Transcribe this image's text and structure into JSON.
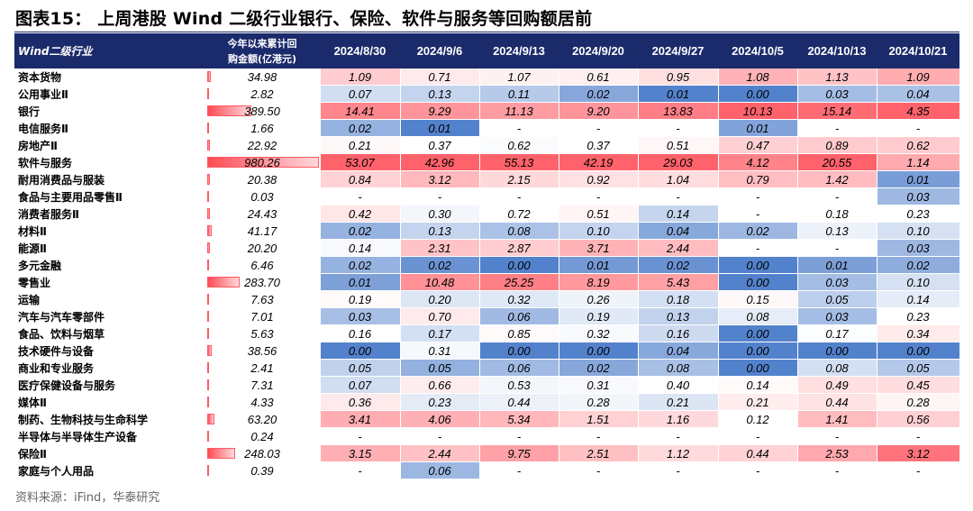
{
  "title": "图表15： 上周港股 Wind 二级行业银行、保险、软件与服务等回购额居前",
  "source": "资料来源：iFind，华泰研究",
  "columns": {
    "name": "Wind二级行业",
    "total_line1": "今年以来累计回",
    "total_line2": "购金额(亿港元)",
    "dates": [
      "2024/8/30",
      "2024/9/6",
      "2024/9/13",
      "2024/9/20",
      "2024/9/27",
      "2024/10/5",
      "2024/10/13",
      "2024/10/21"
    ]
  },
  "colors": {
    "header_bg": "#1b2a6b",
    "low": "#4a7bc9",
    "mid": "#ffffff",
    "high": "#ff5a63",
    "bar": "#ff4b55"
  },
  "rows": [
    {
      "name": "资本货物",
      "total": "34.98",
      "values": [
        "1.09",
        "0.71",
        "1.07",
        "0.61",
        "0.95",
        "1.08",
        "1.13",
        "1.09"
      ]
    },
    {
      "name": "公用事业Ⅱ",
      "total": "2.82",
      "values": [
        "0.07",
        "0.13",
        "0.11",
        "0.02",
        "0.01",
        "0.00",
        "0.03",
        "0.04"
      ]
    },
    {
      "name": "银行",
      "total": "389.50",
      "values": [
        "14.41",
        "9.29",
        "11.13",
        "9.20",
        "13.83",
        "10.13",
        "15.14",
        "4.35"
      ]
    },
    {
      "name": "电信服务Ⅱ",
      "total": "1.66",
      "values": [
        "0.02",
        "0.01",
        "-",
        "-",
        "-",
        "0.01",
        "-",
        "-"
      ]
    },
    {
      "name": "房地产Ⅱ",
      "total": "22.92",
      "values": [
        "0.21",
        "0.37",
        "0.62",
        "0.37",
        "0.51",
        "0.47",
        "0.89",
        "0.62"
      ]
    },
    {
      "name": "软件与服务",
      "total": "980.26",
      "values": [
        "53.07",
        "42.96",
        "55.13",
        "42.19",
        "29.03",
        "4.12",
        "20.55",
        "1.14"
      ]
    },
    {
      "name": "耐用消费品与服装",
      "total": "20.38",
      "values": [
        "0.84",
        "3.12",
        "2.15",
        "0.92",
        "1.04",
        "0.79",
        "1.42",
        "0.01"
      ]
    },
    {
      "name": "食品与主要用品零售Ⅱ",
      "total": "0.03",
      "values": [
        "-",
        "-",
        "-",
        "-",
        "-",
        "-",
        "-",
        "0.03"
      ]
    },
    {
      "name": "消费者服务Ⅱ",
      "total": "24.43",
      "values": [
        "0.42",
        "0.30",
        "0.72",
        "0.51",
        "0.14",
        "-",
        "0.18",
        "0.23"
      ]
    },
    {
      "name": "材料Ⅱ",
      "total": "41.17",
      "values": [
        "0.02",
        "0.13",
        "0.08",
        "0.10",
        "0.04",
        "0.02",
        "0.13",
        "0.10"
      ]
    },
    {
      "name": "能源Ⅱ",
      "total": "20.20",
      "values": [
        "0.14",
        "2.31",
        "2.87",
        "3.71",
        "2.44",
        "-",
        "-",
        "0.03"
      ]
    },
    {
      "name": "多元金融",
      "total": "6.46",
      "values": [
        "0.02",
        "0.02",
        "0.00",
        "0.01",
        "0.02",
        "0.00",
        "0.01",
        "0.02"
      ]
    },
    {
      "name": "零售业",
      "total": "283.70",
      "values": [
        "0.01",
        "10.48",
        "25.25",
        "8.19",
        "5.43",
        "0.00",
        "0.03",
        "0.10"
      ]
    },
    {
      "name": "运输",
      "total": "7.63",
      "values": [
        "0.19",
        "0.20",
        "0.32",
        "0.26",
        "0.18",
        "0.15",
        "0.05",
        "0.14"
      ]
    },
    {
      "name": "汽车与汽车零部件",
      "total": "7.01",
      "values": [
        "0.03",
        "0.70",
        "0.06",
        "0.19",
        "0.13",
        "0.08",
        "0.03",
        "0.23"
      ]
    },
    {
      "name": "食品、饮料与烟草",
      "total": "5.63",
      "values": [
        "0.16",
        "0.17",
        "0.85",
        "0.32",
        "0.16",
        "0.00",
        "0.17",
        "0.34"
      ]
    },
    {
      "name": "技术硬件与设备",
      "total": "38.56",
      "values": [
        "0.00",
        "0.31",
        "0.00",
        "0.00",
        "0.04",
        "0.00",
        "0.00",
        "0.00"
      ]
    },
    {
      "name": "商业和专业服务",
      "total": "2.41",
      "values": [
        "0.05",
        "0.05",
        "0.06",
        "0.02",
        "0.08",
        "0.00",
        "0.08",
        "0.05"
      ]
    },
    {
      "name": "医疗保健设备与服务",
      "total": "7.31",
      "values": [
        "0.07",
        "0.66",
        "0.53",
        "0.31",
        "0.40",
        "0.14",
        "0.49",
        "0.45"
      ]
    },
    {
      "name": "媒体Ⅱ",
      "total": "4.33",
      "values": [
        "0.36",
        "0.23",
        "0.44",
        "0.28",
        "0.21",
        "0.21",
        "0.44",
        "0.28"
      ]
    },
    {
      "name": "制药、生物科技与生命科学",
      "total": "63.20",
      "values": [
        "3.41",
        "4.06",
        "5.34",
        "1.51",
        "1.16",
        "0.12",
        "1.41",
        "0.56"
      ]
    },
    {
      "name": "半导体与半导体生产设备",
      "total": "0.24",
      "values": [
        "-",
        "-",
        "-",
        "-",
        "-",
        "-",
        "-",
        "-"
      ]
    },
    {
      "name": "保险Ⅱ",
      "total": "248.03",
      "values": [
        "3.15",
        "2.44",
        "9.75",
        "2.51",
        "1.12",
        "0.44",
        "2.53",
        "3.12"
      ]
    },
    {
      "name": "家庭与个人用品",
      "total": "0.39",
      "values": [
        "-",
        "0.06",
        "-",
        "-",
        "-",
        "-",
        "-",
        "-"
      ]
    }
  ]
}
